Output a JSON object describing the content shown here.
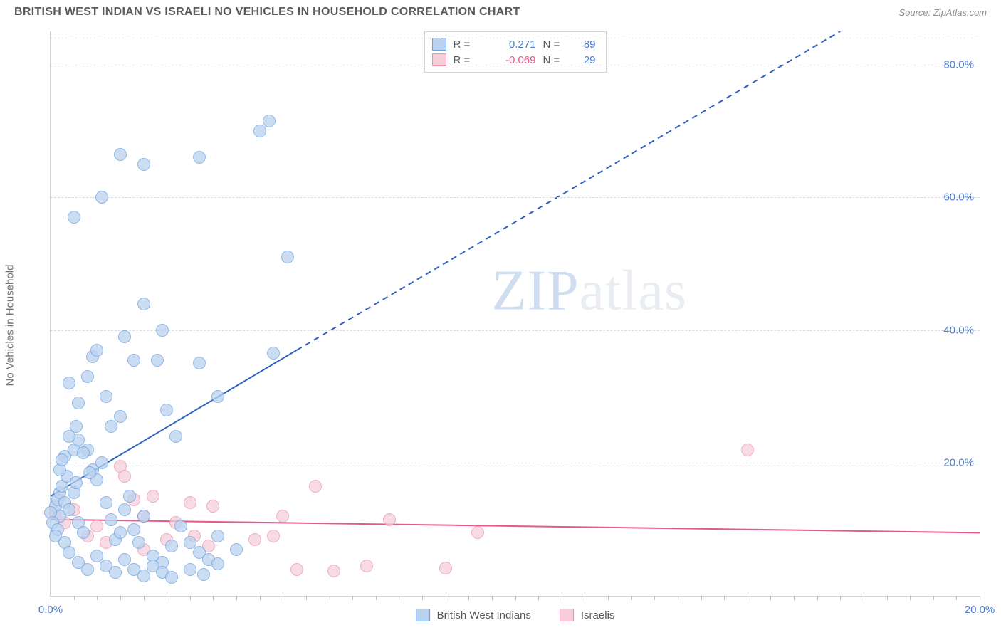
{
  "header": {
    "title": "BRITISH WEST INDIAN VS ISRAELI NO VEHICLES IN HOUSEHOLD CORRELATION CHART",
    "source": "Source: ZipAtlas.com"
  },
  "axes": {
    "y_label": "No Vehicles in Household",
    "x_min": 0.0,
    "x_max": 20.0,
    "y_min": 0.0,
    "y_max": 85.0,
    "y_ticks": [
      20.0,
      40.0,
      60.0,
      80.0
    ],
    "x_ticks": [
      0.0,
      20.0
    ],
    "tick_format_suffix": "%",
    "tick_fontsize": 15,
    "tick_color": "#4a7bd0",
    "label_fontsize": 15,
    "label_color": "#6b7075",
    "grid_color": "#d9dde1",
    "axis_line_color": "#cfd3d7",
    "x_minor_ticks_every": 0.5
  },
  "watermark": {
    "zip": "ZIP",
    "atlas": "atlas"
  },
  "series": {
    "blue": {
      "name": "British West Indians",
      "fill": "#b9d2f0",
      "stroke": "#6fa1df",
      "r_value": "0.271",
      "r_color": "#4a7bd0",
      "n_value": "89",
      "marker_radius": 9,
      "marker_opacity": 0.75,
      "trend": {
        "solid": {
          "x1": 0.0,
          "y1": 15.0,
          "x2": 5.3,
          "y2": 37.0
        },
        "dashed": {
          "x1": 5.3,
          "y1": 37.0,
          "x2": 17.0,
          "y2": 85.0
        },
        "stroke": "#2f62c0",
        "width": 2,
        "dash": "8 6"
      },
      "points": [
        [
          0.1,
          13.5
        ],
        [
          0.2,
          12.0
        ],
        [
          0.15,
          14.5
        ],
        [
          0.2,
          15.5
        ],
        [
          0.0,
          12.5
        ],
        [
          0.05,
          11.0
        ],
        [
          0.15,
          10.0
        ],
        [
          0.1,
          9.0
        ],
        [
          0.3,
          14.0
        ],
        [
          0.25,
          16.5
        ],
        [
          0.35,
          18.0
        ],
        [
          0.4,
          13.0
        ],
        [
          0.5,
          15.5
        ],
        [
          0.55,
          17.0
        ],
        [
          0.6,
          11.0
        ],
        [
          0.7,
          9.5
        ],
        [
          0.3,
          21.0
        ],
        [
          0.5,
          22.0
        ],
        [
          0.6,
          23.5
        ],
        [
          0.8,
          22.0
        ],
        [
          0.9,
          19.0
        ],
        [
          1.0,
          17.5
        ],
        [
          1.1,
          20.0
        ],
        [
          1.2,
          14.0
        ],
        [
          1.3,
          11.5
        ],
        [
          1.4,
          8.5
        ],
        [
          1.5,
          9.5
        ],
        [
          1.6,
          13.0
        ],
        [
          1.7,
          15.0
        ],
        [
          1.8,
          10.0
        ],
        [
          1.9,
          8.0
        ],
        [
          2.0,
          12.0
        ],
        [
          2.2,
          6.0
        ],
        [
          2.4,
          5.0
        ],
        [
          2.6,
          7.5
        ],
        [
          2.8,
          10.5
        ],
        [
          3.0,
          8.0
        ],
        [
          3.2,
          6.5
        ],
        [
          3.4,
          5.5
        ],
        [
          3.6,
          9.0
        ],
        [
          0.4,
          32.0
        ],
        [
          0.8,
          33.0
        ],
        [
          0.6,
          29.0
        ],
        [
          0.9,
          36.0
        ],
        [
          1.0,
          37.0
        ],
        [
          1.2,
          30.0
        ],
        [
          1.3,
          25.5
        ],
        [
          1.5,
          27.0
        ],
        [
          1.6,
          39.0
        ],
        [
          1.8,
          35.5
        ],
        [
          2.3,
          35.5
        ],
        [
          2.5,
          28.0
        ],
        [
          2.7,
          24.0
        ],
        [
          3.2,
          35.0
        ],
        [
          3.6,
          30.0
        ],
        [
          4.8,
          36.5
        ],
        [
          2.0,
          44.0
        ],
        [
          2.4,
          40.0
        ],
        [
          0.5,
          57.0
        ],
        [
          1.1,
          60.0
        ],
        [
          1.5,
          66.5
        ],
        [
          2.0,
          65.0
        ],
        [
          3.2,
          66.0
        ],
        [
          4.5,
          70.0
        ],
        [
          4.7,
          71.5
        ],
        [
          5.1,
          51.0
        ],
        [
          0.3,
          8.0
        ],
        [
          0.4,
          6.5
        ],
        [
          0.6,
          5.0
        ],
        [
          0.8,
          4.0
        ],
        [
          1.0,
          6.0
        ],
        [
          1.2,
          4.5
        ],
        [
          1.4,
          3.5
        ],
        [
          1.6,
          5.5
        ],
        [
          1.8,
          4.0
        ],
        [
          2.0,
          3.0
        ],
        [
          2.2,
          4.5
        ],
        [
          2.4,
          3.5
        ],
        [
          2.6,
          2.8
        ],
        [
          3.0,
          4.0
        ],
        [
          3.3,
          3.2
        ],
        [
          3.6,
          4.8
        ],
        [
          0.2,
          19.0
        ],
        [
          0.25,
          20.5
        ],
        [
          0.4,
          24.0
        ],
        [
          0.55,
          25.5
        ],
        [
          0.7,
          21.5
        ],
        [
          0.85,
          18.5
        ],
        [
          4.0,
          7.0
        ]
      ]
    },
    "pink": {
      "name": "Israelis",
      "fill": "#f6cdd9",
      "stroke": "#e692ad",
      "r_value": "-0.069",
      "r_color": "#e05a8a",
      "n_value": "29",
      "marker_radius": 9,
      "marker_opacity": 0.72,
      "trend": {
        "solid": {
          "x1": 0.0,
          "y1": 11.5,
          "x2": 20.0,
          "y2": 9.5
        },
        "stroke": "#e05a8a",
        "width": 2
      },
      "points": [
        [
          0.1,
          12.5
        ],
        [
          0.3,
          11.0
        ],
        [
          0.5,
          13.0
        ],
        [
          0.8,
          9.0
        ],
        [
          1.0,
          10.5
        ],
        [
          1.2,
          8.0
        ],
        [
          1.5,
          19.5
        ],
        [
          1.6,
          18.0
        ],
        [
          1.8,
          14.5
        ],
        [
          2.0,
          12.0
        ],
        [
          2.0,
          7.0
        ],
        [
          2.2,
          15.0
        ],
        [
          2.5,
          8.5
        ],
        [
          2.7,
          11.0
        ],
        [
          3.0,
          14.0
        ],
        [
          3.1,
          9.0
        ],
        [
          3.4,
          7.5
        ],
        [
          3.5,
          13.5
        ],
        [
          4.4,
          8.5
        ],
        [
          5.0,
          12.0
        ],
        [
          5.3,
          4.0
        ],
        [
          5.7,
          16.5
        ],
        [
          6.1,
          3.8
        ],
        [
          6.8,
          4.5
        ],
        [
          7.3,
          11.5
        ],
        [
          8.5,
          4.2
        ],
        [
          9.2,
          9.5
        ],
        [
          15.0,
          22.0
        ],
        [
          4.8,
          9.0
        ]
      ]
    }
  },
  "legend_top": {
    "r_label": "R =",
    "n_label": "N ="
  },
  "legend_bottom": {
    "items": [
      {
        "key": "blue",
        "label": "British West Indians"
      },
      {
        "key": "pink",
        "label": "Israelis"
      }
    ]
  }
}
